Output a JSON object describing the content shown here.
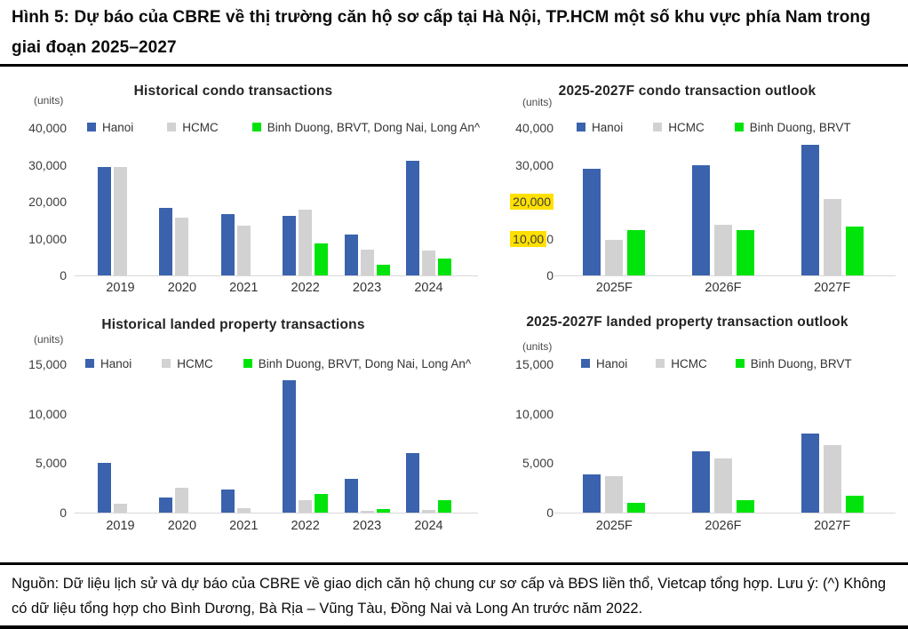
{
  "figure": {
    "title": "Hình 5: Dự báo của CBRE về thị trường căn hộ sơ cấp tại Hà Nội, TP.HCM một số khu vực phía Nam trong giai đoạn 2025–2027",
    "source_note": "Nguồn: Dữ liệu lịch sử và dự báo của CBRE về giao dịch căn hộ chung cư sơ cấp và BĐS liền thổ, Vietcap tổng hợp. Lưu ý: (^) Không có dữ liệu tổng hợp cho Bình Dương, Bà Rịa – Vũng Tàu, Đồng Nai và Long An trước năm 2022."
  },
  "colors": {
    "hanoi": "#3A62AD",
    "hcmc": "#D2D2D2",
    "south": "#00E40B",
    "tick_highlight": "#FFE000"
  },
  "chart_data": [
    {
      "type": "bar",
      "title": "Historical condo transactions",
      "units_label": "(units)",
      "ylabel": "units",
      "ylim": [
        0,
        40000
      ],
      "grid": false,
      "legend_position": "top",
      "categories": [
        "2019",
        "2020",
        "2021",
        "2022",
        "2023",
        "2024"
      ],
      "yticks": [
        {
          "label": "0",
          "value": 0
        },
        {
          "label": "10,000",
          "value": 10000
        },
        {
          "label": "20,000",
          "value": 20000
        },
        {
          "label": "30,000",
          "value": 30000
        },
        {
          "label": "40,000",
          "value": 40000
        }
      ],
      "series": [
        {
          "name": "Hanoi",
          "color_key": "hanoi",
          "values": [
            29500,
            18400,
            16700,
            16200,
            11000,
            31100
          ]
        },
        {
          "name": "HCMC",
          "color_key": "hcmc",
          "values": [
            29400,
            15600,
            13600,
            17800,
            7100,
            6700
          ]
        },
        {
          "name": "Binh Duong, BRVT, Dong Nai, Long An^",
          "color_key": "south",
          "values": [
            null,
            null,
            null,
            8700,
            2900,
            4700
          ]
        }
      ]
    },
    {
      "type": "bar",
      "title": "2025-2027F condo transaction outlook",
      "units_label": "(units)",
      "ylabel": "units",
      "ylim": [
        0,
        40000
      ],
      "grid": false,
      "legend_position": "top",
      "categories": [
        "2025F",
        "2026F",
        "2027F"
      ],
      "yticks": [
        {
          "label": "0",
          "value": 0
        },
        {
          "label": "10,000",
          "value": 10000,
          "highlight": "partial",
          "highlight_prefix_chars": 5
        },
        {
          "label": "20,000",
          "value": 20000,
          "highlight": "full"
        },
        {
          "label": "30,000",
          "value": 30000
        },
        {
          "label": "40,000",
          "value": 40000
        }
      ],
      "series": [
        {
          "name": "Hanoi",
          "color_key": "hanoi",
          "values": [
            28800,
            30000,
            35400
          ]
        },
        {
          "name": "HCMC",
          "color_key": "hcmc",
          "values": [
            9700,
            13700,
            20700
          ]
        },
        {
          "name": "Binh Duong, BRVT",
          "color_key": "south",
          "values": [
            12400,
            12400,
            13200
          ]
        }
      ]
    },
    {
      "type": "bar",
      "title": "Historical landed property transactions",
      "units_label": "(units)",
      "ylabel": "units",
      "ylim": [
        0,
        15000
      ],
      "grid": false,
      "legend_position": "top",
      "categories": [
        "2019",
        "2020",
        "2021",
        "2022",
        "2023",
        "2024"
      ],
      "yticks": [
        {
          "label": "0",
          "value": 0
        },
        {
          "label": "5,000",
          "value": 5000
        },
        {
          "label": "10,000",
          "value": 10000
        },
        {
          "label": "15,000",
          "value": 15000
        }
      ],
      "series": [
        {
          "name": "Hanoi",
          "color_key": "hanoi",
          "values": [
            5000,
            1500,
            2350,
            13400,
            3450,
            6000
          ]
        },
        {
          "name": "HCMC",
          "color_key": "hcmc",
          "values": [
            900,
            2500,
            450,
            1250,
            150,
            270
          ]
        },
        {
          "name": "Binh Duong, BRVT, Dong Nai, Long An^",
          "color_key": "south",
          "values": [
            null,
            null,
            null,
            1900,
            350,
            1250
          ]
        }
      ]
    },
    {
      "type": "bar",
      "title": "2025-2027F landed property transaction outlook",
      "units_label": "(units)",
      "ylabel": "units",
      "ylim": [
        0,
        15000
      ],
      "grid": false,
      "legend_position": "top",
      "categories": [
        "2025F",
        "2026F",
        "2027F"
      ],
      "yticks": [
        {
          "label": "0",
          "value": 0
        },
        {
          "label": "5,000",
          "value": 5000
        },
        {
          "label": "10,000",
          "value": 10000
        },
        {
          "label": "15,000",
          "value": 15000
        }
      ],
      "series": [
        {
          "name": "Hanoi",
          "color_key": "hanoi",
          "values": [
            3850,
            6200,
            8000
          ]
        },
        {
          "name": "HCMC",
          "color_key": "hcmc",
          "values": [
            3650,
            5500,
            6850
          ]
        },
        {
          "name": "Binh Duong, BRVT",
          "color_key": "south",
          "values": [
            1000,
            1250,
            1750
          ]
        }
      ]
    }
  ]
}
